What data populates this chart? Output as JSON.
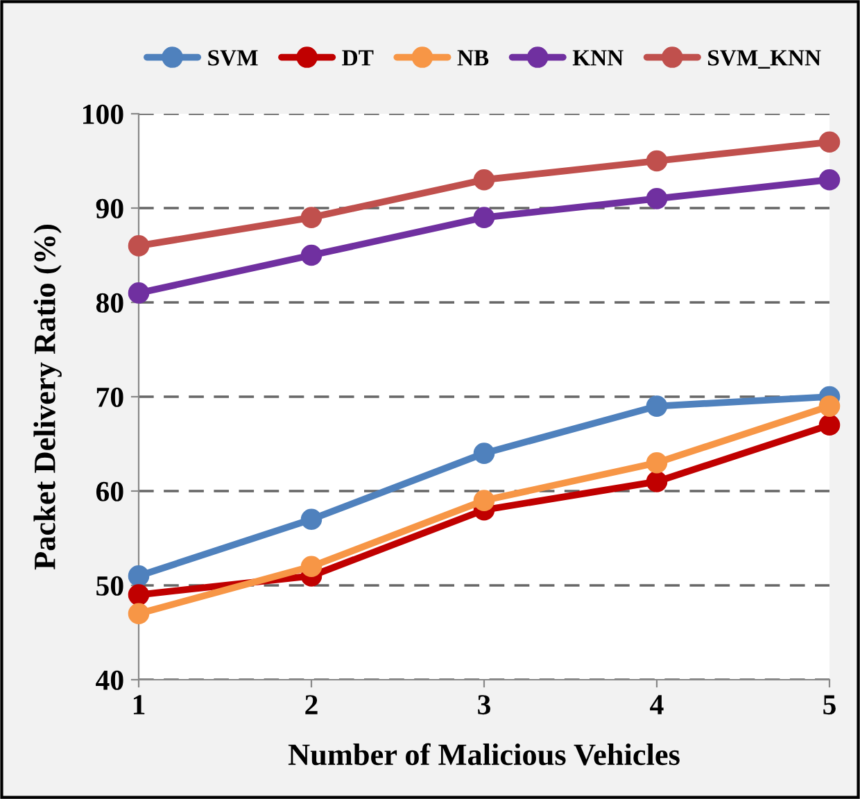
{
  "chart_data": {
    "type": "line",
    "xlabel": "Number of Malicious Vehicles",
    "ylabel": "Packet Delivery Ratio (%)",
    "x": [
      1,
      2,
      3,
      4,
      5
    ],
    "xlim": [
      1,
      5
    ],
    "xticks": [
      1,
      2,
      3,
      4,
      5
    ],
    "ylim": [
      40,
      100
    ],
    "yticks": [
      40,
      50,
      60,
      70,
      80,
      90,
      100
    ],
    "grid": "y",
    "legend": "top",
    "marker": "circle",
    "line_style": "solid",
    "series": [
      {
        "name": "SVM",
        "color": "#4f81bd",
        "values": [
          51,
          57,
          64,
          69,
          70
        ]
      },
      {
        "name": "DT",
        "color": "#c00000",
        "values": [
          49,
          51,
          58,
          61,
          67
        ]
      },
      {
        "name": "NB",
        "color": "#f79646",
        "values": [
          47,
          52,
          59,
          63,
          69
        ]
      },
      {
        "name": "KNN",
        "color": "#7030a0",
        "values": [
          81,
          85,
          89,
          91,
          93
        ]
      },
      {
        "name": "SVM_KNN",
        "color": "#c0504d",
        "values": [
          86,
          89,
          93,
          95,
          97
        ]
      }
    ]
  }
}
